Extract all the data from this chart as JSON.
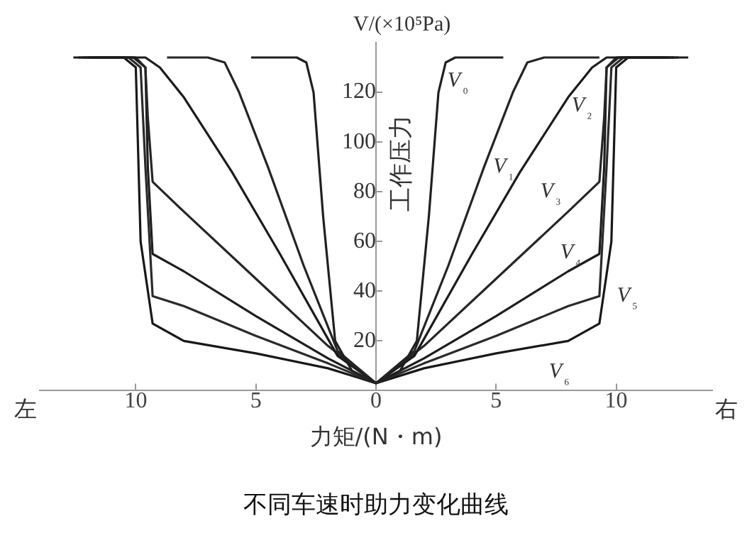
{
  "chart_data": {
    "type": "line",
    "title": "不同车速时助力变化曲线",
    "xlabel": "力矩/(N・m)",
    "ylabel": "V/(×10⁵Pa)",
    "annotations": [
      "左",
      "右",
      "工作压力"
    ],
    "xlim": [
      -14,
      14
    ],
    "ylim": [
      0,
      140
    ],
    "xticks": [
      {
        "value": -10,
        "label": "10"
      },
      {
        "value": -5,
        "label": "5"
      },
      0,
      5,
      10
    ],
    "yticks": [
      20,
      40,
      60,
      80,
      100,
      120
    ],
    "grid": false,
    "legend": false,
    "marker": "none",
    "line_style": "solid",
    "series": [
      {
        "name": "V₀",
        "color": "#202020",
        "x": [
          -5.2,
          -3.3,
          -2.9,
          -2.6,
          -2.2,
          -1.7,
          -1,
          0,
          1,
          1.7,
          2.2,
          2.6,
          2.9,
          3.3,
          5.3
        ],
        "values": [
          134,
          134,
          132,
          120,
          70,
          20,
          8,
          3,
          8,
          20,
          70,
          120,
          132,
          134,
          134
        ]
      },
      {
        "name": "V₁",
        "color": "#242424",
        "x": [
          -8.7,
          -7,
          -6.3,
          -5.7,
          -4.5,
          -3,
          -1.6,
          0,
          1.6,
          3,
          4.5,
          5.7,
          6.3,
          7,
          9.3
        ],
        "values": [
          134,
          134,
          132,
          120,
          90,
          50,
          16,
          3,
          16,
          50,
          90,
          120,
          132,
          134,
          134
        ]
      },
      {
        "name": "V₂",
        "color": "#1c1c1c",
        "x": [
          -12.6,
          -9.6,
          -9,
          -8,
          -6,
          -4,
          -1.6,
          0,
          1.6,
          4,
          6,
          8,
          9,
          9.6,
          13
        ],
        "values": [
          134,
          134,
          130,
          118,
          88,
          55,
          14,
          3,
          14,
          55,
          88,
          118,
          130,
          134,
          134
        ]
      },
      {
        "name": "V₃",
        "color": "#262626",
        "x": [
          -12.4,
          -10,
          -9.6,
          -9.5,
          -9.3,
          -8,
          -5,
          -2,
          0,
          2,
          5,
          8,
          9.3,
          9.5,
          9.6,
          10,
          12.6
        ],
        "values": [
          134,
          134,
          130,
          110,
          84,
          72,
          45,
          18,
          3,
          18,
          45,
          72,
          84,
          110,
          130,
          134,
          134
        ]
      },
      {
        "name": "V₄",
        "color": "#1e1e1e",
        "x": [
          -12.2,
          -10.1,
          -9.6,
          -9.5,
          -9.3,
          -8,
          -5,
          -2,
          0,
          2,
          5,
          8,
          9.3,
          9.5,
          9.6,
          10.1,
          12.4
        ],
        "values": [
          134,
          134,
          130,
          90,
          55,
          48,
          30,
          13,
          3,
          13,
          30,
          48,
          55,
          90,
          130,
          134,
          134
        ]
      },
      {
        "name": "V₅",
        "color": "#2a2a2a",
        "x": [
          -12,
          -10.3,
          -9.8,
          -9.6,
          -9.3,
          -8,
          -5,
          -2,
          0,
          2,
          5,
          8,
          9.3,
          9.6,
          9.8,
          10.3,
          12.2
        ],
        "values": [
          134,
          134,
          130,
          90,
          38,
          34,
          22,
          11,
          3,
          11,
          22,
          34,
          38,
          90,
          130,
          134,
          134
        ]
      },
      {
        "name": "V₆",
        "color": "#181818",
        "x": [
          -11.8,
          -10.5,
          -10,
          -9.8,
          -9.3,
          -8,
          -5,
          -2,
          0,
          2,
          5,
          8,
          9.3,
          9.8,
          10,
          10.5,
          12
        ],
        "values": [
          134,
          134,
          130,
          60,
          27,
          20,
          15,
          9,
          3,
          9,
          15,
          20,
          27,
          60,
          130,
          134,
          134
        ]
      }
    ]
  }
}
